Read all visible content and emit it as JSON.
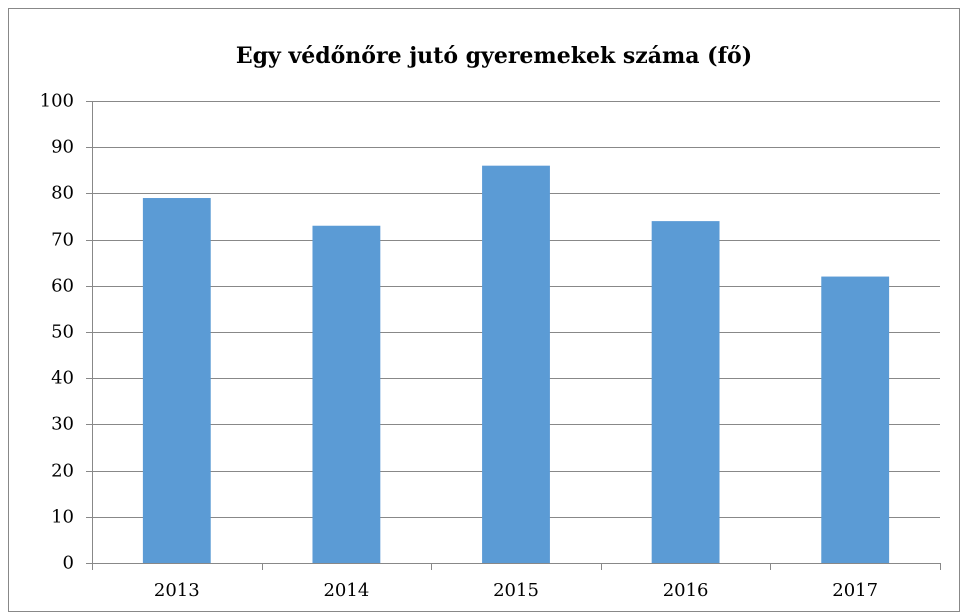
{
  "chart_data": {
    "type": "bar",
    "title": "Egy védőnőre jutó gyeremekek száma (fő)",
    "categories": [
      "2013",
      "2014",
      "2015",
      "2016",
      "2017"
    ],
    "values": [
      79,
      73,
      86,
      74,
      62
    ],
    "color": "#5b9bd5",
    "ylim": [
      0,
      100
    ],
    "yticks": [
      0,
      10,
      20,
      30,
      40,
      50,
      60,
      70,
      80,
      90,
      100
    ],
    "grid": true
  }
}
